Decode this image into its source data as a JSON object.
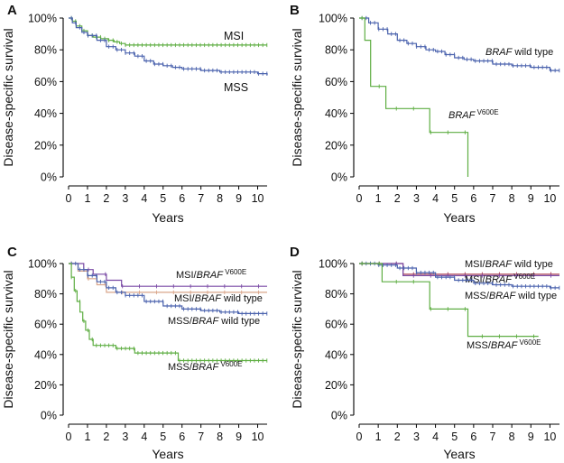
{
  "chart_data": [
    {
      "panel": "A",
      "type": "line",
      "step": true,
      "xlabel": "Years",
      "ylabel": "Disease-specific survival",
      "xlim": [
        0,
        10.5
      ],
      "ylim": [
        0,
        100
      ],
      "xticks": [
        "0",
        "1",
        "2",
        "3",
        "4",
        "5",
        "6",
        "7",
        "8",
        "9",
        "10"
      ],
      "yticks": [
        "0%",
        "20%",
        "40%",
        "60%",
        "80%",
        "100%"
      ],
      "series": [
        {
          "name": "MSI",
          "label": "MSI",
          "label_parts": [
            {
              "text": "MSI",
              "style": "normal"
            }
          ],
          "color": "#5fae43",
          "x": [
            0,
            0.2,
            0.4,
            0.7,
            1.0,
            1.3,
            1.7,
            2.1,
            2.4,
            2.7,
            2.9,
            3.0,
            10.5
          ],
          "y": [
            100,
            98,
            95,
            92,
            89,
            88,
            87,
            86,
            85,
            84,
            84,
            83,
            83
          ]
        },
        {
          "name": "MSS",
          "label": "MSS",
          "label_parts": [
            {
              "text": "MSS",
              "style": "normal"
            }
          ],
          "color": "#4a62ad",
          "x": [
            0,
            0.2,
            0.4,
            0.7,
            1.0,
            1.5,
            2.0,
            2.5,
            3.0,
            3.5,
            4.0,
            4.5,
            5.0,
            5.5,
            6.0,
            7.0,
            8.0,
            9.0,
            10.0,
            10.5
          ],
          "y": [
            100,
            97,
            94,
            91,
            89,
            86,
            82,
            80,
            78,
            76,
            73,
            71,
            70,
            69,
            68,
            67,
            66,
            66,
            65,
            64
          ]
        }
      ]
    },
    {
      "panel": "B",
      "type": "line",
      "step": true,
      "xlabel": "Years",
      "ylabel": "Disease-specific survival",
      "xlim": [
        0,
        10.5
      ],
      "ylim": [
        0,
        100
      ],
      "xticks": [
        "0",
        "1",
        "2",
        "3",
        "4",
        "5",
        "6",
        "7",
        "8",
        "9",
        "10"
      ],
      "yticks": [
        "0%",
        "20%",
        "40%",
        "60%",
        "80%",
        "100%"
      ],
      "series": [
        {
          "name": "BRAF wild type",
          "label": "BRAF wild type",
          "label_parts": [
            {
              "text": "BRAF",
              "style": "italic"
            },
            {
              "text": " wild type",
              "style": "normal"
            }
          ],
          "color": "#4a62ad",
          "x": [
            0,
            0.5,
            1.0,
            1.5,
            2.0,
            2.5,
            3.0,
            3.5,
            4.0,
            4.5,
            5.0,
            5.5,
            6.0,
            7.0,
            8.0,
            9.0,
            10.0,
            10.5
          ],
          "y": [
            100,
            97,
            93,
            90,
            86,
            84,
            82,
            80,
            79,
            77,
            75,
            74,
            73,
            71,
            70,
            69,
            67,
            67
          ]
        },
        {
          "name": "BRAF V600E",
          "label": "BRAF V600E",
          "label_parts": [
            {
              "text": "BRAF",
              "style": "italic"
            },
            {
              "text": " V600E",
              "style": "sup"
            }
          ],
          "color": "#5fae43",
          "x": [
            0,
            0.3,
            0.6,
            1.4,
            3.7,
            5.7
          ],
          "y": [
            100,
            86,
            57,
            43,
            28,
            0
          ]
        }
      ]
    },
    {
      "panel": "C",
      "type": "line",
      "step": true,
      "xlabel": "Years",
      "ylabel": "Disease-specific survival",
      "xlim": [
        0,
        10.5
      ],
      "ylim": [
        0,
        100
      ],
      "xticks": [
        "0",
        "1",
        "2",
        "3",
        "4",
        "5",
        "6",
        "7",
        "8",
        "9",
        "10"
      ],
      "yticks": [
        "0%",
        "20%",
        "40%",
        "60%",
        "80%",
        "100%"
      ],
      "series": [
        {
          "name": "MSI/BRAF V600E",
          "label": "MSI/BRAF V600E",
          "label_parts": [
            {
              "text": "MSI/",
              "style": "normal"
            },
            {
              "text": "BRAF",
              "style": "italic"
            },
            {
              "text": " V600E",
              "style": "sup"
            }
          ],
          "color": "#7a4aa5",
          "x": [
            0,
            0.8,
            1.3,
            2.0,
            2.8,
            10.5
          ],
          "y": [
            100,
            96,
            93,
            89,
            85,
            85
          ]
        },
        {
          "name": "MSI/BRAF wild type",
          "label": "MSI/BRAF wild type",
          "label_parts": [
            {
              "text": "MSI/",
              "style": "normal"
            },
            {
              "text": "BRAF",
              "style": "italic"
            },
            {
              "text": " wild type",
              "style": "normal"
            }
          ],
          "color": "#d9a58a",
          "x": [
            0,
            0.5,
            1.0,
            1.5,
            2.0,
            10.5
          ],
          "y": [
            100,
            95,
            90,
            86,
            81,
            81
          ]
        },
        {
          "name": "MSS/BRAF wild type",
          "label": "MSS/BRAF wild type",
          "label_parts": [
            {
              "text": "MSS/",
              "style": "normal"
            },
            {
              "text": "BRAF",
              "style": "italic"
            },
            {
              "text": " wild type",
              "style": "normal"
            }
          ],
          "color": "#4a62ad",
          "x": [
            0,
            0.5,
            1.0,
            1.5,
            2.0,
            2.5,
            3.0,
            4.0,
            5.0,
            6.0,
            7.0,
            8.0,
            9.0,
            10.0,
            10.5
          ],
          "y": [
            100,
            96,
            92,
            88,
            84,
            81,
            79,
            75,
            72,
            70,
            69,
            68,
            67,
            67,
            67
          ]
        },
        {
          "name": "MSS/BRAF V600E",
          "label": "MSS/BRAF V600E",
          "label_parts": [
            {
              "text": "MSS/",
              "style": "normal"
            },
            {
              "text": "BRAF",
              "style": "italic"
            },
            {
              "text": " V600E",
              "style": "sup"
            }
          ],
          "color": "#5fae43",
          "x": [
            0,
            0.15,
            0.3,
            0.45,
            0.6,
            0.75,
            0.9,
            1.1,
            1.3,
            2.5,
            3.5,
            5.8,
            10.5
          ],
          "y": [
            100,
            91,
            82,
            75,
            68,
            62,
            56,
            50,
            46,
            44,
            41,
            36,
            36
          ]
        }
      ]
    },
    {
      "panel": "D",
      "type": "line",
      "step": true,
      "xlabel": "Years",
      "ylabel": "Disease-specific survival",
      "xlim": [
        0,
        10.5
      ],
      "ylim": [
        0,
        100
      ],
      "xticks": [
        "0",
        "1",
        "2",
        "3",
        "4",
        "5",
        "6",
        "7",
        "8",
        "9",
        "10"
      ],
      "yticks": [
        "0%",
        "20%",
        "40%",
        "60%",
        "80%",
        "100%"
      ],
      "series": [
        {
          "name": "MSI/BRAF wild type",
          "label": "MSI/BRAF wild type",
          "label_parts": [
            {
              "text": "MSI/",
              "style": "normal"
            },
            {
              "text": "BRAF",
              "style": "italic"
            },
            {
              "text": " wild type",
              "style": "normal"
            }
          ],
          "color": "#b0404e",
          "x": [
            0,
            2.3,
            10.5
          ],
          "y": [
            100,
            93,
            93
          ]
        },
        {
          "name": "MSI/BRAF V600E",
          "label": "MSI/BRAF V600E",
          "label_parts": [
            {
              "text": "MSI/",
              "style": "normal"
            },
            {
              "text": "BRAF",
              "style": "italic"
            },
            {
              "text": " V600E",
              "style": "sup"
            }
          ],
          "color": "#7a4aa5",
          "x": [
            0,
            2.3,
            10.5
          ],
          "y": [
            100,
            92,
            92
          ]
        },
        {
          "name": "MSS/BRAF wild type",
          "label": "MSS/BRAF wild type",
          "label_parts": [
            {
              "text": "MSS/",
              "style": "normal"
            },
            {
              "text": "BRAF",
              "style": "italic"
            },
            {
              "text": " wild type",
              "style": "normal"
            }
          ],
          "color": "#4a62ad",
          "x": [
            0,
            1.0,
            2.0,
            3.0,
            4.0,
            5.0,
            6.0,
            7.0,
            8.0,
            9.0,
            10.0,
            10.5
          ],
          "y": [
            100,
            99,
            97,
            94,
            91,
            89,
            87,
            86,
            85,
            85,
            84,
            84
          ]
        },
        {
          "name": "MSS/BRAF V600E",
          "label": "MSS/BRAF V600E",
          "label_parts": [
            {
              "text": "MSS/",
              "style": "normal"
            },
            {
              "text": "BRAF",
              "style": "italic"
            },
            {
              "text": " V600E",
              "style": "sup"
            }
          ],
          "color": "#5fae43",
          "x": [
            0,
            1.2,
            3.7,
            5.7,
            9.4
          ],
          "y": [
            100,
            88,
            70,
            52,
            52
          ]
        }
      ]
    }
  ]
}
